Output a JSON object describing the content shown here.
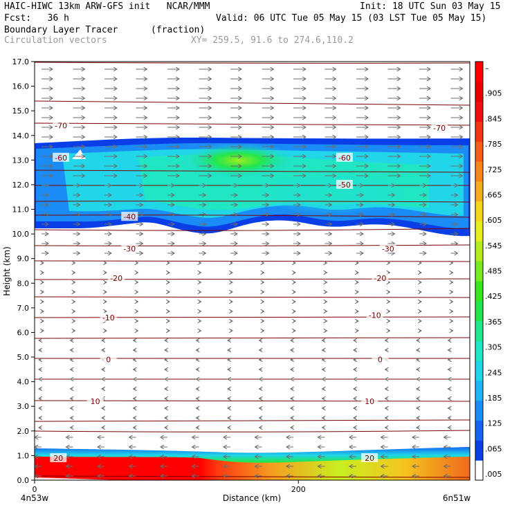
{
  "header": {
    "line1_left": "HAIC-HIWC 13km ARW-GFS init   NCAR/MMM",
    "line1_right": "Init: 18 UTC Sun 03 May 15",
    "line2_left": "Fcst:   36 h",
    "line2_right": "Valid: 06 UTC Tue 05 May 15 (03 LST Tue 05 May 15)",
    "field_name": "Boundary Layer Tracer",
    "field_units": "(fraction)",
    "vector_label": "Circulation vectors",
    "xy_label": "XY= 259.5, 91.6 to 274.6,110.2"
  },
  "colors": {
    "contour": "#7a0000",
    "vector": "#6b6b6b",
    "colorbar": [
      "#ffffff",
      "#0a3ee6",
      "#1565f2",
      "#1b8cf6",
      "#1fb4f4",
      "#20d6e8",
      "#20e6c4",
      "#20e88c",
      "#22e64c",
      "#38e620",
      "#78ea20",
      "#b4ec20",
      "#e6ee20",
      "#f4d41e",
      "#f4ac1c",
      "#f4861a",
      "#f45e18",
      "#f23614",
      "#ee1010",
      "#e60000",
      "#ff0000"
    ]
  },
  "chart_data": {
    "type": "heatmap",
    "title": "Boundary Layer Tracer",
    "units": "(fraction)",
    "xlabel": "Distance (km)",
    "ylabel": "Height (km)",
    "xlim": [
      0,
      330
    ],
    "ylim": [
      0,
      17
    ],
    "x_ticks": [
      0,
      200
    ],
    "x_tick_labels": [
      "0",
      "200"
    ],
    "x_end_labels": [
      "4n53w",
      "6n51w"
    ],
    "y_ticks": [
      0,
      1,
      2,
      3,
      4,
      5,
      6,
      7,
      8,
      9,
      10,
      11,
      12,
      13,
      14,
      15,
      16,
      17
    ],
    "y_tick_labels": [
      "0.0",
      "1.0",
      "2.0",
      "3.0",
      "4.0",
      "5.0",
      "6.0",
      "7.0",
      "8.0",
      "9.0",
      "10.0",
      "11.0",
      "12.0",
      "13.0",
      "14.0",
      "15.0",
      "16.0",
      "17.0"
    ],
    "colorbar_labels": [
      ".005",
      ".065",
      ".125",
      ".185",
      ".245",
      ".305",
      ".365",
      ".425",
      ".485",
      ".545",
      ".605",
      ".665",
      ".725",
      ".785",
      ".845",
      ".905",
      "–"
    ],
    "contour_labels": [
      {
        "value": "-70",
        "x": 20,
        "y": 14.4
      },
      {
        "value": "-70",
        "x": 307,
        "y": 14.3
      },
      {
        "value": "-60",
        "x": 20,
        "y": 13.1
      },
      {
        "value": "-60",
        "x": 235,
        "y": 13.1
      },
      {
        "value": "-50",
        "x": 235,
        "y": 12.0
      },
      {
        "value": "-40",
        "x": 72,
        "y": 10.7
      },
      {
        "value": "-30",
        "x": 72,
        "y": 9.4
      },
      {
        "value": "-30",
        "x": 268,
        "y": 9.4
      },
      {
        "value": "-20",
        "x": 62,
        "y": 8.2
      },
      {
        "value": "-20",
        "x": 262,
        "y": 8.2
      },
      {
        "value": "-10",
        "x": 56,
        "y": 6.6
      },
      {
        "value": "-10",
        "x": 258,
        "y": 6.7
      },
      {
        "value": "0",
        "x": 56,
        "y": 4.9
      },
      {
        "value": "0",
        "x": 262,
        "y": 4.9
      },
      {
        "value": "10",
        "x": 46,
        "y": 3.2
      },
      {
        "value": "10",
        "x": 254,
        "y": 3.2
      },
      {
        "value": "20",
        "x": 18,
        "y": 0.9
      },
      {
        "value": "20",
        "x": 254,
        "y": 0.9
      }
    ]
  }
}
